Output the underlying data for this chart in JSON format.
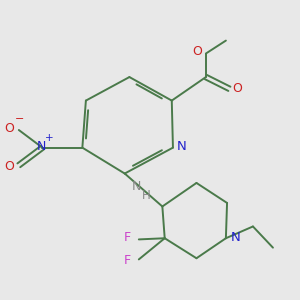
{
  "background_color": "#e8e8e8",
  "bond_color": "#4a7a4a",
  "nitrogen_color": "#2222cc",
  "oxygen_color": "#cc2222",
  "fluorine_color": "#cc44cc",
  "nh_color": "#888888",
  "figsize": [
    3.0,
    3.0
  ],
  "dpi": 100,
  "bond_lw": 1.4,
  "xlim": [
    0,
    300
  ],
  "ylim": [
    0,
    300
  ]
}
